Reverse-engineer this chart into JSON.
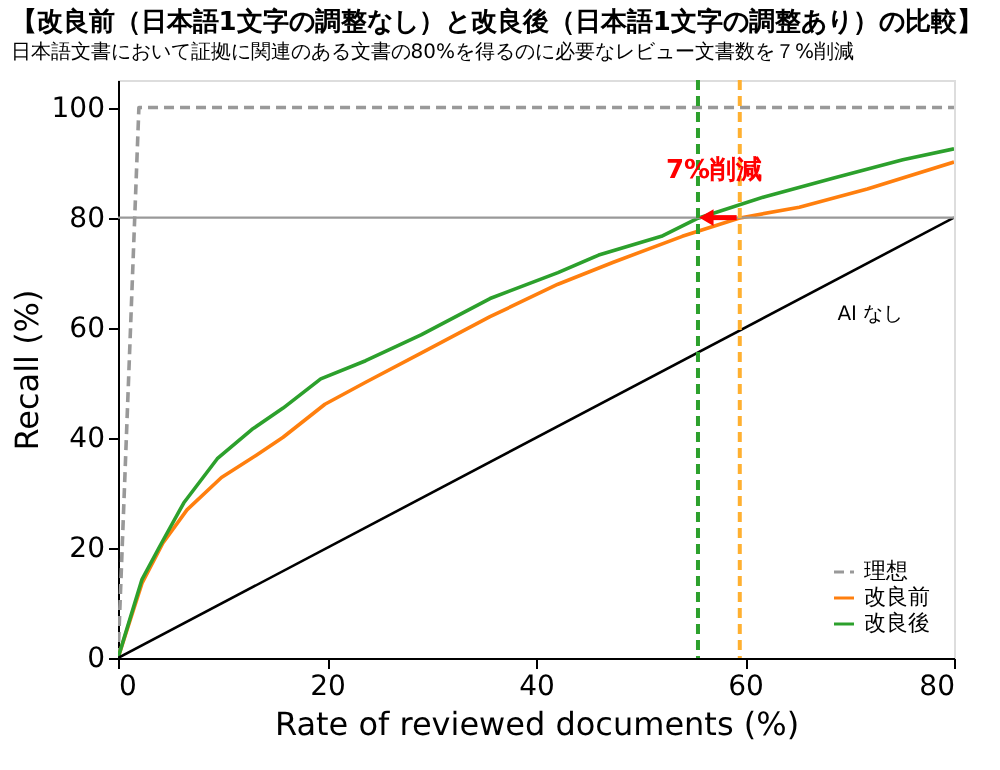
{
  "chart_data": {
    "type": "line",
    "title": "【改良前（日本語1文字の調整なし）と改良後（日本語1文字の調整あり）の比較】",
    "subtitle": "日本語文書において証拠に関連のある文書の80%を得るのに必要なレビュー文書数を７%削減",
    "xlabel": "Rate of reviewed documents (%)",
    "ylabel": "Recall (%)",
    "xlim": [
      0,
      80
    ],
    "ylim": [
      0,
      105
    ],
    "xticks": [
      0,
      20,
      40,
      60,
      80
    ],
    "yticks": [
      0,
      20,
      40,
      60,
      80,
      100
    ],
    "grid": false,
    "legend": "bottom right",
    "marker": "none",
    "series": [
      {
        "name": "理想",
        "color": "#999999",
        "line_style": "dashed",
        "x": [
          0,
          2,
          80
        ],
        "values": [
          0,
          100,
          100
        ]
      },
      {
        "name": "改良前",
        "color": "#ff7f0e",
        "line_style": "solid",
        "x": [
          0,
          2.3,
          4.3,
          6.6,
          9.9,
          13.2,
          15.8,
          19.8,
          23.7,
          29,
          35.6,
          42.1,
          47.4,
          54,
          59.4,
          65.2,
          71.7,
          80
        ],
        "values": [
          0,
          13.6,
          20.9,
          26.9,
          32.8,
          36.8,
          40.1,
          46.1,
          50.1,
          55.4,
          62,
          67.9,
          71.9,
          76.6,
          79.9,
          81.9,
          85.2,
          90.1
        ]
      },
      {
        "name": "改良後",
        "color": "#2ca02c",
        "line_style": "solid",
        "x": [
          0,
          2.3,
          4,
          6.3,
          9.5,
          12.8,
          15.8,
          19.4,
          23.7,
          29,
          35.6,
          42.1,
          46,
          52,
          55.5,
          61.9,
          68.5,
          75.1,
          80
        ],
        "values": [
          0,
          14.3,
          20.3,
          28.2,
          36.2,
          41.5,
          45.4,
          50.7,
          54,
          58.7,
          65.3,
          70,
          73.2,
          76.6,
          79.9,
          83.8,
          87.2,
          90.5,
          92.5
        ]
      },
      {
        "color": "#000000",
        "line_style": "solid",
        "x": [
          0,
          80
        ],
        "values": [
          0,
          80
        ]
      }
    ],
    "ref_lines": [
      {
        "axis": "y",
        "value": 80,
        "color": "#999999",
        "line_style": "solid"
      },
      {
        "axis": "x",
        "value": 55.5,
        "color": "#2ca02c",
        "line_style": "dashed"
      },
      {
        "axis": "x",
        "value": 59.5,
        "color": "#ffb030",
        "line_style": "dashed"
      }
    ],
    "annotations": [
      "7%削減",
      "AI なし"
    ]
  }
}
